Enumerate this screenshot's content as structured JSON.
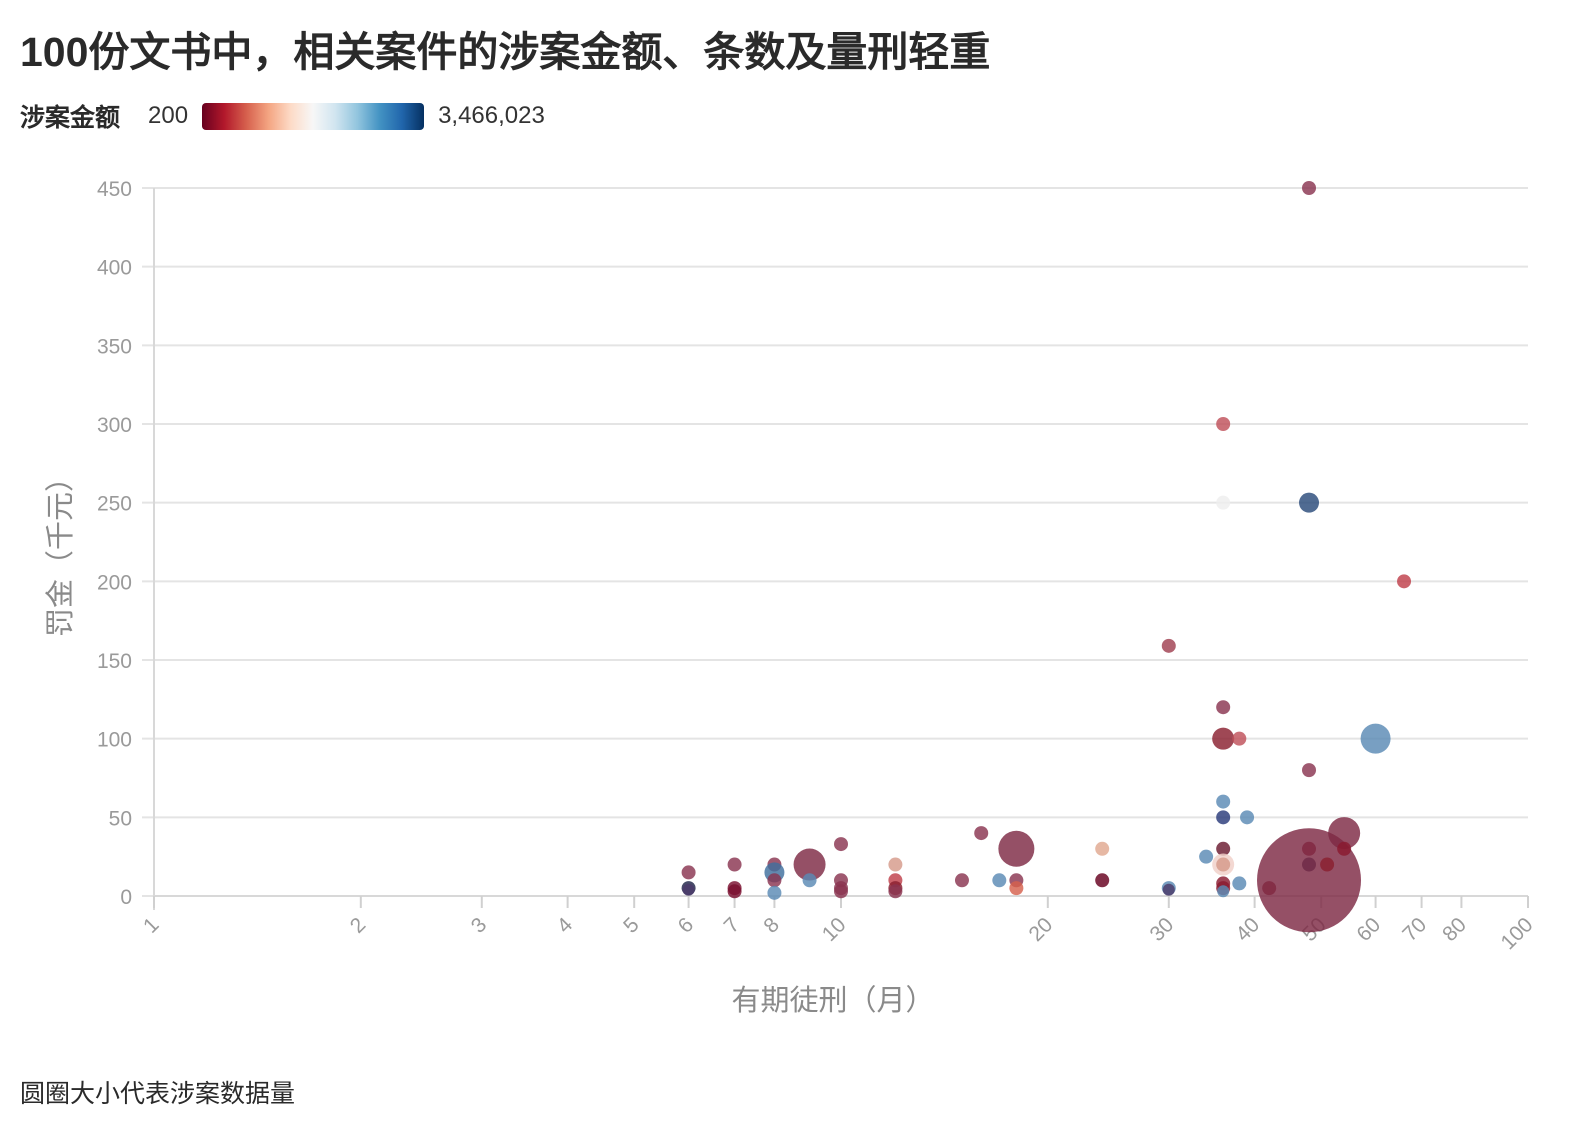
{
  "header": {
    "title": "100份文书中，相关案件的涉案金额、条数及量刑轻重"
  },
  "legend": {
    "label": "涉案金额",
    "min_label": "200",
    "max_label": "3,466,023",
    "min_value": 200,
    "max_value": 3466023,
    "colors": [
      "#67001f",
      "#b2182b",
      "#d6604d",
      "#f4a582",
      "#fddbc7",
      "#f7f7f7",
      "#d1e5f0",
      "#92c5de",
      "#4393c3",
      "#2166ac",
      "#053061"
    ]
  },
  "footer": {
    "note": "圆圈大小代表涉案数据量"
  },
  "chart_data": {
    "type": "scatter",
    "xlabel": "有期徒刑（月）",
    "ylabel": "罚金（千元）",
    "x_scale": "log",
    "xlim": [
      1,
      100
    ],
    "ylim": [
      0,
      450
    ],
    "x_ticks": [
      1,
      2,
      3,
      4,
      5,
      6,
      7,
      8,
      10,
      20,
      30,
      40,
      50,
      60,
      70,
      80,
      100
    ],
    "y_ticks": [
      0,
      50,
      100,
      150,
      200,
      250,
      300,
      350,
      400,
      450
    ],
    "grid": "horizontal",
    "size_encoding": "圆圈大小代表涉案数据量",
    "color_encoding": "涉案金额",
    "points": [
      {
        "x": 6,
        "y": 15,
        "r": 7,
        "c": "#8a3550"
      },
      {
        "x": 6,
        "y": 5,
        "r": 7,
        "c": "#1e2448"
      },
      {
        "x": 6,
        "y": 4,
        "r": 6,
        "c": "#4a3a6a"
      },
      {
        "x": 7,
        "y": 20,
        "r": 7,
        "c": "#8a3550"
      },
      {
        "x": 7,
        "y": 5,
        "r": 7,
        "c": "#7a1030"
      },
      {
        "x": 7,
        "y": 3,
        "r": 7,
        "c": "#7a1030"
      },
      {
        "x": 8,
        "y": 20,
        "r": 7,
        "c": "#8a3550"
      },
      {
        "x": 8,
        "y": 15,
        "r": 10,
        "c": "#3f6f9e"
      },
      {
        "x": 8,
        "y": 10,
        "r": 7,
        "c": "#8a3550"
      },
      {
        "x": 8,
        "y": 2,
        "r": 7,
        "c": "#5a8ab5"
      },
      {
        "x": 9,
        "y": 20,
        "r": 16,
        "c": "#7e2a44"
      },
      {
        "x": 9,
        "y": 10,
        "r": 7,
        "c": "#5a8ab5"
      },
      {
        "x": 10,
        "y": 33,
        "r": 7,
        "c": "#8a3550"
      },
      {
        "x": 10,
        "y": 10,
        "r": 7,
        "c": "#8a3550"
      },
      {
        "x": 10,
        "y": 5,
        "r": 7,
        "c": "#8a3550"
      },
      {
        "x": 10,
        "y": 3,
        "r": 7,
        "c": "#8a3550"
      },
      {
        "x": 12,
        "y": 20,
        "r": 7,
        "c": "#d69a8a"
      },
      {
        "x": 12,
        "y": 10,
        "r": 7,
        "c": "#c0404a"
      },
      {
        "x": 12,
        "y": 5,
        "r": 7,
        "c": "#8a2030"
      },
      {
        "x": 12,
        "y": 3,
        "r": 7,
        "c": "#8a3550"
      },
      {
        "x": 15,
        "y": 10,
        "r": 7,
        "c": "#8a3550"
      },
      {
        "x": 16,
        "y": 40,
        "r": 7,
        "c": "#8a3550"
      },
      {
        "x": 17,
        "y": 10,
        "r": 7,
        "c": "#5a8ab5"
      },
      {
        "x": 18,
        "y": 30,
        "r": 18,
        "c": "#7e2a44"
      },
      {
        "x": 18,
        "y": 10,
        "r": 7,
        "c": "#8a3550"
      },
      {
        "x": 18,
        "y": 5,
        "r": 7,
        "c": "#d6604d"
      },
      {
        "x": 24,
        "y": 30,
        "r": 7,
        "c": "#e0a890"
      },
      {
        "x": 24,
        "y": 10,
        "r": 7,
        "c": "#67001f"
      },
      {
        "x": 30,
        "y": 159,
        "r": 7,
        "c": "#a04050"
      },
      {
        "x": 30,
        "y": 5,
        "r": 7,
        "c": "#5a8ab5"
      },
      {
        "x": 30,
        "y": 4,
        "r": 6,
        "c": "#4a3a6a"
      },
      {
        "x": 34,
        "y": 25,
        "r": 7,
        "c": "#5a8ab5"
      },
      {
        "x": 36,
        "y": 300,
        "r": 7,
        "c": "#c0505a"
      },
      {
        "x": 36,
        "y": 250,
        "r": 7,
        "c": "#eeeeee"
      },
      {
        "x": 36,
        "y": 120,
        "r": 7,
        "c": "#8a3550"
      },
      {
        "x": 36,
        "y": 100,
        "r": 11,
        "c": "#8a2030"
      },
      {
        "x": 36,
        "y": 60,
        "r": 7,
        "c": "#5a8ab5"
      },
      {
        "x": 36,
        "y": 50,
        "r": 7,
        "c": "#2a3a7a"
      },
      {
        "x": 36,
        "y": 30,
        "r": 7,
        "c": "#6a1a30"
      },
      {
        "x": 36,
        "y": 20,
        "r": 11,
        "c": "#f0d0c8"
      },
      {
        "x": 36,
        "y": 20,
        "r": 7,
        "c": "#d69a8a"
      },
      {
        "x": 36,
        "y": 8,
        "r": 7,
        "c": "#8a1a30"
      },
      {
        "x": 36,
        "y": 5,
        "r": 7,
        "c": "#8a1a30"
      },
      {
        "x": 36,
        "y": 3,
        "r": 6,
        "c": "#5a8ab5"
      },
      {
        "x": 38,
        "y": 100,
        "r": 7,
        "c": "#c0505a"
      },
      {
        "x": 38,
        "y": 8,
        "r": 7,
        "c": "#5a8ab5"
      },
      {
        "x": 39,
        "y": 50,
        "r": 7,
        "c": "#5a8ab5"
      },
      {
        "x": 42,
        "y": 5,
        "r": 7,
        "c": "#8a2030"
      },
      {
        "x": 48,
        "y": 450,
        "r": 7,
        "c": "#8a3550"
      },
      {
        "x": 48,
        "y": 250,
        "r": 10,
        "c": "#2a4a7a"
      },
      {
        "x": 48,
        "y": 80,
        "r": 7,
        "c": "#8a3550"
      },
      {
        "x": 48,
        "y": 30,
        "r": 7,
        "c": "#8a1a30"
      },
      {
        "x": 48,
        "y": 20,
        "r": 7,
        "c": "#2a2a50"
      },
      {
        "x": 48,
        "y": 10,
        "r": 52,
        "c": "#7e2a44"
      },
      {
        "x": 51,
        "y": 20,
        "r": 7,
        "c": "#8a2030"
      },
      {
        "x": 54,
        "y": 40,
        "r": 16,
        "c": "#7e2a44"
      },
      {
        "x": 54,
        "y": 30,
        "r": 7,
        "c": "#8a1a30"
      },
      {
        "x": 60,
        "y": 100,
        "r": 15,
        "c": "#5a8ab5"
      },
      {
        "x": 66,
        "y": 200,
        "r": 7,
        "c": "#c0404a"
      }
    ]
  }
}
